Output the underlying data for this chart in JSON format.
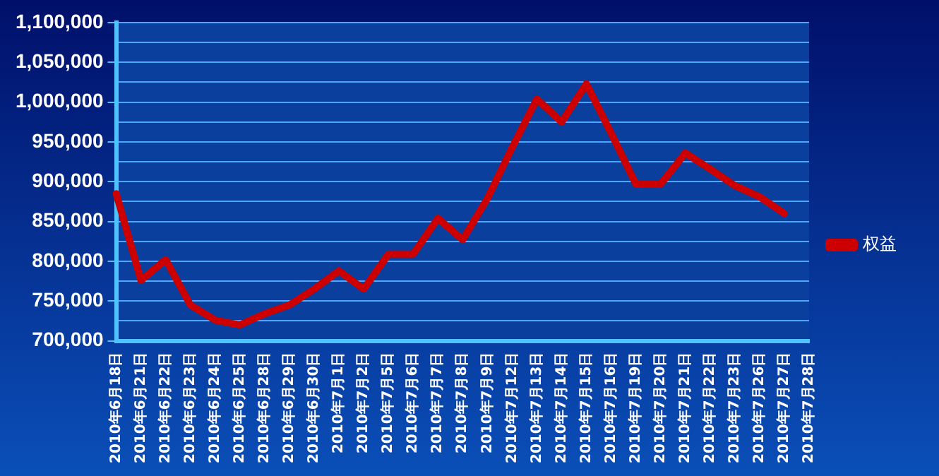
{
  "chart_data": {
    "type": "line",
    "categories": [
      "2010年6月18日",
      "2010年6月21日",
      "2010年6月22日",
      "2010年6月23日",
      "2010年6月24日",
      "2010年6月25日",
      "2010年6月28日",
      "2010年6月29日",
      "2010年6月30日",
      "2010年7月1日",
      "2010年7月2日",
      "2010年7月5日",
      "2010年7月6日",
      "2010年7月7日",
      "2010年7月8日",
      "2010年7月9日",
      "2010年7月12日",
      "2010年7月13日",
      "2010年7月14日",
      "2010年7月15日",
      "2010年7月16日",
      "2010年7月19日",
      "2010年7月20日",
      "2010年7月21日",
      "2010年7月22日",
      "2010年7月23日",
      "2010年7月26日",
      "2010年7月27日",
      "2010年7月28日"
    ],
    "series": [
      {
        "name": "权益",
        "color": "#cc0000",
        "values": [
          885000,
          776000,
          802000,
          745000,
          726000,
          720000,
          734000,
          745000,
          765000,
          788000,
          765000,
          809000,
          809000,
          854000,
          827000,
          879000,
          943000,
          1004000,
          975000,
          1023000,
          961000,
          897000,
          897000,
          936000,
          916000,
          895000,
          881000,
          860000,
          null
        ]
      }
    ],
    "ylim": [
      700000,
      1100000
    ],
    "yticks": [
      {
        "value": 700000,
        "label": "700,000"
      },
      {
        "value": 725000,
        "label": null
      },
      {
        "value": 750000,
        "label": "750,000"
      },
      {
        "value": 775000,
        "label": null
      },
      {
        "value": 800000,
        "label": "800,000"
      },
      {
        "value": 825000,
        "label": null
      },
      {
        "value": 850000,
        "label": "850,000"
      },
      {
        "value": 875000,
        "label": null
      },
      {
        "value": 900000,
        "label": "900,000"
      },
      {
        "value": 925000,
        "label": null
      },
      {
        "value": 950000,
        "label": "950,000"
      },
      {
        "value": 975000,
        "label": null
      },
      {
        "value": 1000000,
        "label": "1,000,000"
      },
      {
        "value": 1025000,
        "label": null
      },
      {
        "value": 1050000,
        "label": "1,050,000"
      },
      {
        "value": 1075000,
        "label": null
      },
      {
        "value": 1100000,
        "label": "1,100,000"
      }
    ],
    "grid": "y",
    "legend": "right",
    "marker": "none",
    "line_style": "solid"
  }
}
